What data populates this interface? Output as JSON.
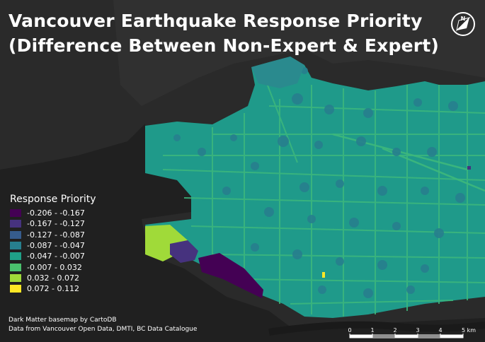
{
  "title": {
    "line1": "Vancouver Earthquake Response Priority",
    "line2": "(Difference Between Non-Expert & Expert)"
  },
  "north_arrow": {
    "label": "N",
    "icon": "north-arrow-icon"
  },
  "legend": {
    "title": "Response Priority",
    "items": [
      {
        "label": "-0.206 - -0.167",
        "color": "#440154"
      },
      {
        "label": "-0.167 - -0.127",
        "color": "#46327e"
      },
      {
        "label": "-0.127 - -0.087",
        "color": "#365c8d"
      },
      {
        "label": "-0.087 - -0.047",
        "color": "#277f8e"
      },
      {
        "label": "-0.047 - -0.007",
        "color": "#1fa187"
      },
      {
        "label": "-0.007 - 0.032",
        "color": "#4ac16d"
      },
      {
        "label": "0.032 - 0.072",
        "color": "#a0da39"
      },
      {
        "label": "0.072 - 0.112",
        "color": "#fde725"
      }
    ]
  },
  "credits": {
    "line1": "Dark Matter basemap by CartoDB",
    "line2": "Data from Vancouver Open Data, DMTI, BC Data Catalogue"
  },
  "scale_bar": {
    "ticks": [
      "0",
      "1",
      "2",
      "3",
      "4",
      "5 km"
    ]
  },
  "colors": {
    "background": "#262626",
    "water": "#1a1a1a",
    "land_outside": "#2e2e2e",
    "city_base": "#1f9a8a"
  }
}
